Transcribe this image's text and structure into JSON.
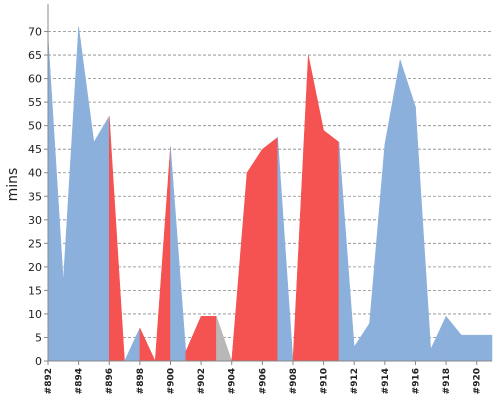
{
  "chart_data": {
    "type": "area",
    "title": "",
    "xlabel": "",
    "ylabel": "mins",
    "ylim": [
      0,
      75
    ],
    "yticks": [
      0,
      5,
      10,
      15,
      20,
      25,
      30,
      35,
      40,
      45,
      50,
      55,
      60,
      65,
      70
    ],
    "xlim": [
      892,
      921
    ],
    "xticks": [
      892,
      894,
      896,
      898,
      900,
      902,
      904,
      906,
      908,
      910,
      912,
      914,
      916,
      918,
      920
    ],
    "xtick_labels": [
      "#892",
      "#894",
      "#896",
      "#898",
      "#900",
      "#902",
      "#904",
      "#906",
      "#908",
      "#910",
      "#912",
      "#914",
      "#916",
      "#918",
      "#920"
    ],
    "grid": {
      "horizontal": true,
      "vertical": false,
      "style": "dashed"
    },
    "colors": {
      "success": "#8cb0dc",
      "failed": "#f55252",
      "aborted": "#b8b8b8",
      "axis": "#888888",
      "grid": "#888888"
    },
    "points": [
      {
        "build": 892,
        "value": 69,
        "status": "success"
      },
      {
        "build": 893,
        "value": 17,
        "status": "success"
      },
      {
        "build": 894,
        "value": 71,
        "status": "success"
      },
      {
        "build": 895,
        "value": 46.5,
        "status": "success"
      },
      {
        "build": 896,
        "value": 52,
        "status": "success"
      },
      {
        "build": 897,
        "value": 0,
        "status": "failed"
      },
      {
        "build": 898,
        "value": 7,
        "status": "success"
      },
      {
        "build": 899,
        "value": 0,
        "status": "failed"
      },
      {
        "build": 900,
        "value": 45.5,
        "status": "failed"
      },
      {
        "build": 901,
        "value": 2,
        "status": "success"
      },
      {
        "build": 902,
        "value": 9.5,
        "status": "failed"
      },
      {
        "build": 903,
        "value": 9.5,
        "status": "failed"
      },
      {
        "build": 904,
        "value": 0,
        "status": "aborted"
      },
      {
        "build": 905,
        "value": 40,
        "status": "failed"
      },
      {
        "build": 906,
        "value": 45,
        "status": "failed"
      },
      {
        "build": 907,
        "value": 47.5,
        "status": "failed"
      },
      {
        "build": 908,
        "value": 0,
        "status": "success"
      },
      {
        "build": 909,
        "value": 65,
        "status": "failed"
      },
      {
        "build": 910,
        "value": 49,
        "status": "failed"
      },
      {
        "build": 911,
        "value": 46.5,
        "status": "failed"
      },
      {
        "build": 912,
        "value": 3,
        "status": "success"
      },
      {
        "build": 913,
        "value": 8,
        "status": "success"
      },
      {
        "build": 914,
        "value": 46,
        "status": "success"
      },
      {
        "build": 915,
        "value": 64,
        "status": "success"
      },
      {
        "build": 916,
        "value": 54,
        "status": "success"
      },
      {
        "build": 917,
        "value": 2.5,
        "status": "success"
      },
      {
        "build": 918,
        "value": 9.5,
        "status": "success"
      },
      {
        "build": 919,
        "value": 5.5,
        "status": "success"
      },
      {
        "build": 920,
        "value": 5.5,
        "status": "success"
      },
      {
        "build": 921,
        "value": 5.5,
        "status": "success"
      }
    ]
  }
}
